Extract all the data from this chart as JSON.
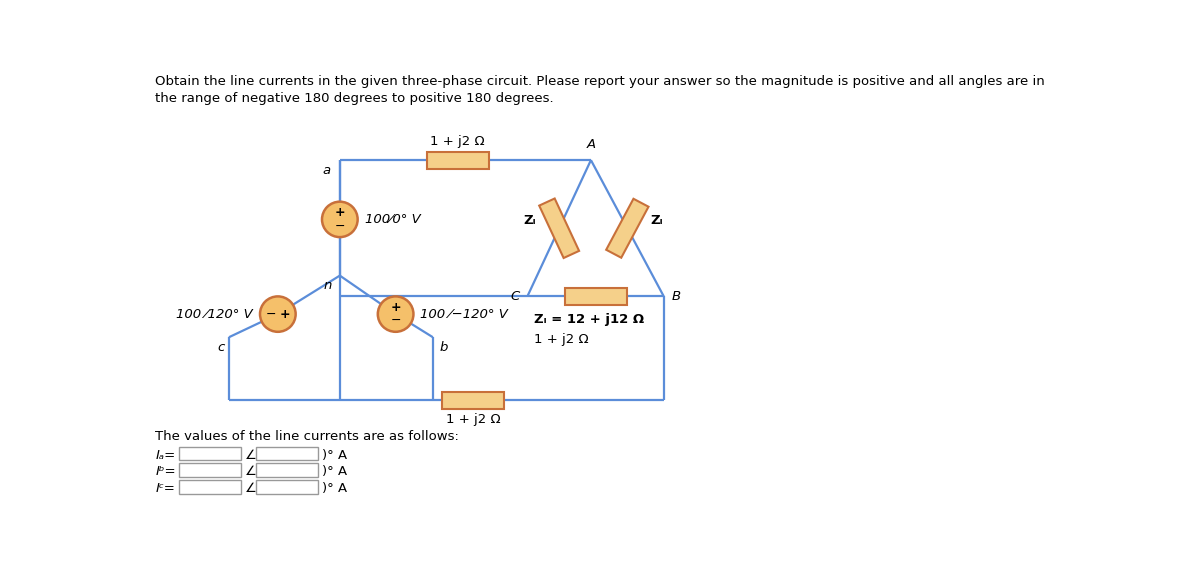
{
  "title_line1": "Obtain the line currents in the given three-phase circuit. Please report your answer so the magnitude is positive and all angles are in",
  "title_line2": "the range of negative 180 degrees to positive 180 degrees.",
  "background_color": "#ffffff",
  "line_color": "#5b8dd9",
  "box_fill": "#f5d08a",
  "box_edge": "#c8703a",
  "src_fill": "#f5c06a",
  "src_edge": "#c8703a",
  "delta_line_color": "#5b8dd9",
  "text_color": "#000000",
  "bold_text_color": "#000000",
  "src_a_label": "100⁄0° V",
  "src_b_label": "100 ⁄−120° V",
  "src_c_label": "100 ⁄120° V",
  "imp_top": "1 + j2 Ω",
  "imp_bot": "1 + j2 Ω",
  "imp_CB": "1 + j2 Ω",
  "ZL_def": "Zₗ = 12 + j12 Ω",
  "ZL_lbl": "Zₗ",
  "node_a": "a",
  "node_b": "b",
  "node_c": "c",
  "node_n": "n",
  "node_A": "A",
  "node_B": "B",
  "node_C": "C",
  "ans_intro": "The values of the line currents are as follows:",
  "Ia_lbl": "Iₐ=",
  "Ib_lbl": "Iᵇ=",
  "Ic_lbl": "Iᶜ=",
  "angle_sym": "∠(",
  "deg_A": ")° A",
  "figsize": [
    11.81,
    5.77
  ],
  "dpi": 100
}
